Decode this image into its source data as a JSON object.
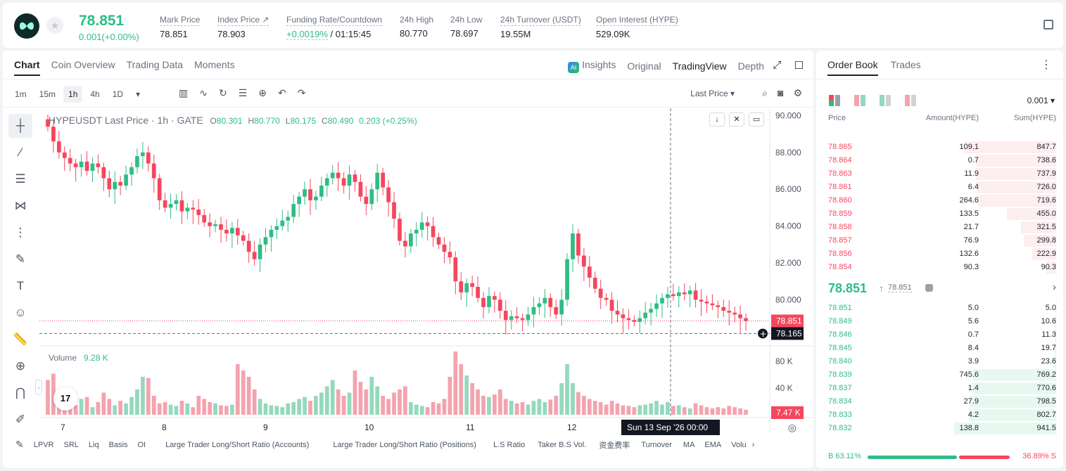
{
  "ticker": {
    "last_price": "78.851",
    "change": "0.001(+0.00%)",
    "stats": [
      {
        "label": "Mark Price",
        "value": "78.851"
      },
      {
        "label": "Index Price ↗",
        "value": "78.903"
      },
      {
        "label": "Funding Rate/Countdown",
        "value_green": "+0.0019%",
        "value": " / 01:15:45"
      },
      {
        "label": "24h High",
        "value": "80.770"
      },
      {
        "label": "24h Low",
        "value": "78.697"
      },
      {
        "label": "24h Turnover (USDT)",
        "value": "19.55M"
      },
      {
        "label": "Open Interest (HYPE)",
        "value": "529.09K"
      }
    ]
  },
  "chart_tabs": [
    "Chart",
    "Coin Overview",
    "Trading Data",
    "Moments"
  ],
  "view_tabs": {
    "insights": "Insights",
    "original": "Original",
    "tradingview": "TradingView",
    "depth": "Depth"
  },
  "timeframes": [
    "1m",
    "15m",
    "1h",
    "4h",
    "1D"
  ],
  "price_type": "Last Price ▾",
  "legend": {
    "title": "HYPEUSDT Last Price · 1h · GATE",
    "o_label": "O",
    "o": "80.301",
    "h_label": "H",
    "h": "80.770",
    "l_label": "L",
    "l": "80.175",
    "c_label": "C",
    "c": "80.490",
    "chg": "0.203 (+0.25%)"
  },
  "volume_legend": {
    "label": "Volume",
    "value": "9.28 K"
  },
  "tv_logo": "17",
  "indicators": [
    "LPVR",
    "SRL",
    "Liq",
    "Basis",
    "OI",
    "Large Trader Long/Short Ratio (Accounts)",
    "Large Trader Long/Short Ratio (Positions)",
    "L.S Ratio",
    "Taker B.S Vol.",
    "资金费率",
    "Turnover",
    "MA",
    "EMA",
    "Volu"
  ],
  "chart_data": {
    "type": "candlestick",
    "title": "HYPEUSDT Last Price · 1h · GATE",
    "y_ticks": [
      "90.000",
      "88.000",
      "86.000",
      "84.000",
      "82.000",
      "80.000"
    ],
    "ylim": [
      77.8,
      90.4
    ],
    "volume_ticks": [
      "80 K",
      "40 K"
    ],
    "x_ticks": [
      "7",
      "8",
      "9",
      "10",
      "11",
      "12"
    ],
    "last_price_tag": "78.851",
    "crosshair_price_tag": "78.165",
    "volume_tag": "7.47 K",
    "crosshair_time": "Sun 13 Sep '26   00:00",
    "close_path": [
      89.4,
      88.6,
      88.0,
      87.7,
      87.4,
      87.2,
      87.5,
      87.0,
      87.4,
      87.2,
      86.6,
      86.0,
      86.4,
      86.2,
      86.8,
      87.2,
      87.8,
      88.0,
      87.4,
      86.6,
      85.4,
      85.0,
      85.2,
      85.4,
      84.8,
      85.0,
      84.9,
      84.6,
      84.2,
      84.0,
      84.1,
      83.8,
      83.6,
      83.9,
      83.5,
      83.2,
      82.6,
      82.2,
      83.0,
      83.4,
      83.8,
      84.0,
      84.3,
      84.5,
      85.2,
      85.6,
      86.0,
      85.4,
      85.6,
      86.2,
      86.6,
      86.9,
      86.6,
      86.2,
      86.8,
      86.4,
      85.6,
      85.2,
      86.0,
      86.9,
      86.1,
      85.3,
      84.4,
      83.2,
      82.9,
      83.6,
      83.8,
      84.2,
      84.0,
      83.4,
      83.0,
      82.6,
      82.3,
      81.0,
      80.4,
      80.9,
      80.7,
      80.1,
      79.6,
      80.2,
      80.0,
      79.4,
      78.9,
      79.1,
      79.0,
      78.9,
      79.2,
      79.6,
      79.8,
      80.1,
      79.6,
      79.2,
      80.0,
      82.2,
      83.6,
      82.4,
      81.8,
      81.2,
      80.6,
      80.1,
      80.0,
      79.4,
      79.2,
      79.0,
      78.9,
      78.8,
      79.0,
      79.3,
      79.5,
      79.8,
      80.1,
      80.3,
      80.2,
      80.4,
      80.3,
      80.5,
      80.0,
      79.9,
      79.8,
      79.7,
      79.6,
      79.4,
      79.3,
      79.2,
      79.0,
      78.85
    ],
    "volume_rel": [
      0.55,
      0.65,
      0.32,
      0.2,
      0.3,
      0.15,
      0.25,
      0.28,
      0.12,
      0.2,
      0.35,
      0.25,
      0.15,
      0.22,
      0.18,
      0.28,
      0.4,
      0.6,
      0.58,
      0.3,
      0.18,
      0.2,
      0.16,
      0.14,
      0.22,
      0.18,
      0.12,
      0.3,
      0.25,
      0.2,
      0.18,
      0.15,
      0.14,
      0.16,
      0.8,
      0.7,
      0.6,
      0.4,
      0.25,
      0.18,
      0.15,
      0.14,
      0.12,
      0.18,
      0.2,
      0.25,
      0.28,
      0.22,
      0.3,
      0.35,
      0.45,
      0.55,
      0.4,
      0.3,
      0.35,
      0.7,
      0.52,
      0.4,
      0.6,
      0.45,
      0.3,
      0.25,
      0.35,
      0.4,
      0.45,
      0.2,
      0.16,
      0.14,
      0.12,
      0.2,
      0.18,
      0.25,
      0.6,
      1.0,
      0.8,
      0.62,
      0.5,
      0.4,
      0.3,
      0.28,
      0.32,
      0.4,
      0.25,
      0.22,
      0.18,
      0.2,
      0.16,
      0.22,
      0.25,
      0.2,
      0.24,
      0.3,
      0.5,
      0.8,
      0.5,
      0.36,
      0.3,
      0.25,
      0.22,
      0.2,
      0.16,
      0.22,
      0.18,
      0.15,
      0.14,
      0.12,
      0.15,
      0.16,
      0.18,
      0.22,
      0.16,
      0.2,
      0.14,
      0.15,
      0.12,
      0.1,
      0.18,
      0.15,
      0.12,
      0.1,
      0.12,
      0.1,
      0.14,
      0.12,
      0.1,
      0.08
    ]
  },
  "orderbook": {
    "tabs": [
      "Order Book",
      "Trades"
    ],
    "precision": "0.001 ▾",
    "headers": {
      "price": "Price",
      "amount": "Amount(HYPE)",
      "sum": "Sum(HYPE)"
    },
    "asks": [
      {
        "price": "78.865",
        "amount": "109.1",
        "sum": "847.7"
      },
      {
        "price": "78.864",
        "amount": "0.7",
        "sum": "738.6"
      },
      {
        "price": "78.863",
        "amount": "11.9",
        "sum": "737.9"
      },
      {
        "price": "78.861",
        "amount": "6.4",
        "sum": "726.0"
      },
      {
        "price": "78.860",
        "amount": "264.6",
        "sum": "719.6"
      },
      {
        "price": "78.859",
        "amount": "133.5",
        "sum": "455.0"
      },
      {
        "price": "78.858",
        "amount": "21.7",
        "sum": "321.5"
      },
      {
        "price": "78.857",
        "amount": "76.9",
        "sum": "299.8"
      },
      {
        "price": "78.856",
        "amount": "132.6",
        "sum": "222.9"
      },
      {
        "price": "78.854",
        "amount": "90.3",
        "sum": "90.3"
      }
    ],
    "mid_price": "78.851",
    "mark_price": "78.851",
    "bids": [
      {
        "price": "78.851",
        "amount": "5.0",
        "sum": "5.0"
      },
      {
        "price": "78.849",
        "amount": "5.6",
        "sum": "10.6"
      },
      {
        "price": "78.846",
        "amount": "0.7",
        "sum": "11.3"
      },
      {
        "price": "78.845",
        "amount": "8.4",
        "sum": "19.7"
      },
      {
        "price": "78.840",
        "amount": "3.9",
        "sum": "23.6"
      },
      {
        "price": "78.839",
        "amount": "745.6",
        "sum": "769.2"
      },
      {
        "price": "78.837",
        "amount": "1.4",
        "sum": "770.6"
      },
      {
        "price": "78.834",
        "amount": "27.9",
        "sum": "798.5"
      },
      {
        "price": "78.833",
        "amount": "4.2",
        "sum": "802.7"
      },
      {
        "price": "78.832",
        "amount": "138.8",
        "sum": "941.5"
      }
    ],
    "buy_label": "B 63.11%",
    "sell_label": "36.89% S",
    "buy_ratio": 0.6311
  },
  "colors": {
    "up": "#2ebd85",
    "down": "#f6465d",
    "up_vol": "#93d9bd",
    "down_vol": "#f4a3ae"
  }
}
